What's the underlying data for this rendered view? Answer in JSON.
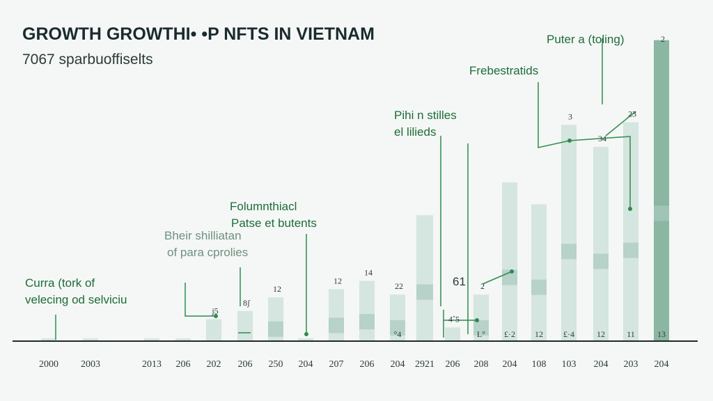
{
  "colors": {
    "background": "#f4f7f5",
    "bar_light": "#cfe2da",
    "bar_mid": "#a9cbbd",
    "bar_dark": "#7fae98",
    "accent_green": "#2f8a4e",
    "text_dark": "#1b2a2e",
    "axis": "#1f2b2a"
  },
  "chart_data": {
    "type": "bar",
    "title": "GROWTH GROWTHI• •P NFTS IN VIETNAM",
    "subtitle": "7067 sparbuoffiselts",
    "categories": [
      "2000",
      "2003",
      "2013",
      "206",
      "202",
      "206",
      "250",
      "204",
      "207",
      "206",
      "204",
      "2921",
      "206",
      "208",
      "204",
      "108",
      "103",
      "204",
      "203",
      "204"
    ],
    "values": [
      1,
      1,
      1,
      1,
      8,
      11,
      16,
      1,
      19,
      22,
      17,
      46,
      5,
      17,
      58,
      50,
      79,
      71,
      80,
      110
    ],
    "ylim": [
      0,
      115
    ],
    "data_labels": [
      "",
      "",
      "",
      "",
      "j5",
      "8ʃ",
      "12",
      "",
      "12",
      "14",
      "22",
      "",
      "4ˆ5",
      "2",
      "",
      "",
      "3",
      "34",
      "23",
      "2"
    ],
    "base_labels": [
      "",
      "",
      "",
      "",
      "",
      "",
      "",
      "",
      "",
      "",
      "°4",
      "",
      "",
      "L°",
      "£·2",
      "12",
      "£·4",
      "12",
      "11",
      "13"
    ],
    "annotations": [
      {
        "line1": "Curra (tork of",
        "line2": "velecing od selviciu",
        "tone": "dark"
      },
      {
        "line1": "Bheir shilliatan",
        "line2": "of para cprolies",
        "tone": "muted"
      },
      {
        "line1": "Folumnthiacl",
        "line2": "Patse et butents",
        "tone": "dark"
      },
      {
        "line1": "Pihi n stilles",
        "line2": "el lilieds",
        "tone": "dark"
      },
      {
        "line1": "61",
        "line2": "",
        "tone": "plain"
      },
      {
        "line1": "Frebestratids",
        "line2": "",
        "tone": "dark"
      },
      {
        "line1": "Puter a (toling)",
        "line2": "",
        "tone": "dark"
      }
    ],
    "grid": false,
    "legend": "none"
  }
}
